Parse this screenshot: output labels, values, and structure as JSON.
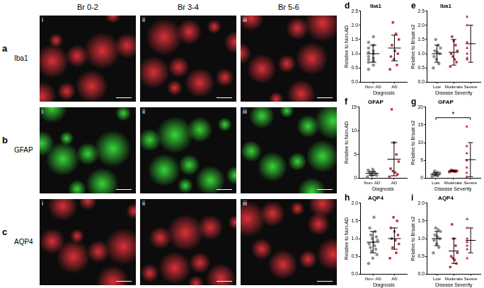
{
  "images": {
    "columns": [
      "Br 0-2",
      "Br 3-4",
      "Br 5-6"
    ],
    "rows": [
      {
        "panel": "a",
        "label": "Iba1",
        "color": "#d8262e",
        "subpanels": [
          "i",
          "ii",
          "iii"
        ]
      },
      {
        "panel": "b",
        "label": "GFAP",
        "color": "#2ed42e",
        "subpanels": [
          "i",
          "ii",
          "iii"
        ]
      },
      {
        "panel": "c",
        "label": "AQP4",
        "color": "#d8262e",
        "subpanels": [
          "i",
          "ii",
          "iii"
        ]
      }
    ]
  },
  "chart_data": [
    {
      "panel": "d",
      "type": "scatter",
      "title": "Iba1",
      "x_label": "Diagnosis",
      "y_label": "Relative to Non-AD",
      "ylim": [
        0,
        2.5
      ],
      "yticks": [
        {
          "value": 0,
          "label": "0.0"
        },
        {
          "value": 0.5,
          "label": "0.5"
        },
        {
          "value": 1,
          "label": "1.0"
        },
        {
          "value": 1.5,
          "label": "1.5"
        },
        {
          "value": 2,
          "label": "2.0"
        },
        {
          "value": 2.5,
          "label": "2.5"
        }
      ],
      "grid": false,
      "groups": [
        {
          "category": "Non- AD",
          "color": "#8c8c8c",
          "marker": "circle",
          "values": [
            0.45,
            0.6,
            0.7,
            0.75,
            0.8,
            0.85,
            0.9,
            1.0,
            1.05,
            1.1,
            1.2,
            1.3,
            1.4,
            1.6
          ],
          "mean": 1.0,
          "error": 0.3
        },
        {
          "category": "AD",
          "color": "#c0283a",
          "marker": "square",
          "values": [
            0.45,
            0.6,
            0.8,
            0.9,
            1.0,
            1.1,
            1.3,
            1.5,
            1.7,
            2.1
          ],
          "mean": 1.2,
          "error": 0.45
        }
      ]
    },
    {
      "panel": "e",
      "type": "scatter",
      "title": "Iba1",
      "x_label": "Disease Severity",
      "y_label": "Relative to Braak ≤2",
      "ylim": [
        0,
        2.5
      ],
      "yticks": [
        {
          "value": 0,
          "label": "0.0"
        },
        {
          "value": 0.5,
          "label": "0.5"
        },
        {
          "value": 1,
          "label": "1.0"
        },
        {
          "value": 1.5,
          "label": "1.5"
        },
        {
          "value": 2,
          "label": "2.0"
        },
        {
          "value": 2.5,
          "label": "2.5"
        }
      ],
      "grid": false,
      "groups": [
        {
          "category": "Low",
          "color": "#8c8c8c",
          "marker": "circle",
          "values": [
            0.5,
            0.65,
            0.8,
            0.9,
            1.0,
            1.05,
            1.1,
            1.2,
            1.3,
            1.5
          ],
          "mean": 1.0,
          "error": 0.3
        },
        {
          "category": "Moderate",
          "color": "#c0283a",
          "marker": "square",
          "values": [
            0.55,
            0.7,
            0.8,
            0.9,
            1.0,
            1.1,
            1.3,
            1.45,
            1.6
          ],
          "mean": 1.05,
          "error": 0.45
        },
        {
          "category": "Severe",
          "color": "#c0283a",
          "marker": "triangle",
          "values": [
            0.8,
            0.85,
            1.0,
            1.2,
            1.4,
            2.0,
            2.3
          ],
          "mean": 1.35,
          "error": 0.65
        }
      ]
    },
    {
      "panel": "f",
      "type": "scatter",
      "title": "GFAP",
      "x_label": "Diagnosis",
      "y_label": "Relative to Non-AD",
      "ylim": [
        0,
        15
      ],
      "yticks": [
        0,
        5,
        10,
        15
      ],
      "grid": false,
      "groups": [
        {
          "category": "Non- AD",
          "color": "#8c8c8c",
          "marker": "circle",
          "values": [
            0.3,
            0.5,
            0.6,
            0.7,
            0.8,
            0.9,
            1.0,
            1.0,
            1.1,
            1.2,
            1.3,
            1.4,
            1.5,
            1.7,
            1.9
          ],
          "mean": 1.0,
          "error": 0.4
        },
        {
          "category": "AD",
          "color": "#c0283a",
          "marker": "square",
          "values": [
            0.3,
            0.8,
            1.2,
            1.5,
            2.0,
            3.5,
            5.0,
            7.5,
            14.5
          ],
          "mean": 4.0,
          "error": 3.5
        }
      ]
    },
    {
      "panel": "g",
      "type": "scatter",
      "title": "GFAP",
      "x_label": "Disease Severity",
      "y_label": "Relative to Braak ≤2",
      "ylim": [
        0,
        20
      ],
      "yticks": [
        0,
        5,
        10,
        15,
        20
      ],
      "grid": false,
      "groups": [
        {
          "category": "Low",
          "color": "#8c8c8c",
          "marker": "circle",
          "values": [
            0.5,
            0.7,
            0.9,
            1.0,
            1.1,
            1.2,
            1.3,
            1.5,
            1.7,
            2.0
          ],
          "mean": 1.1,
          "error": 0.45
        },
        {
          "category": "Moderate",
          "color": "#c0283a",
          "marker": "square",
          "values": [
            1.7,
            1.8,
            1.9,
            2.0,
            2.0,
            2.1,
            2.1,
            2.2,
            2.3
          ],
          "mean": 2.0,
          "error": 0.2
        },
        {
          "category": "Severe",
          "color": "#c0283a",
          "marker": "triangle",
          "values": [
            0.4,
            1.5,
            3.0,
            5.0,
            7.0,
            9.0,
            14.5
          ],
          "mean": 5.2,
          "error": 4.8
        }
      ],
      "annotations": [
        {
          "text": "*",
          "from": "Low",
          "to": "Severe",
          "y": 17
        }
      ]
    },
    {
      "panel": "h",
      "type": "scatter",
      "title": "AQP4",
      "x_label": "Diagnosis",
      "y_label": "Relative to Non-AD",
      "ylim": [
        0,
        2
      ],
      "yticks": [
        {
          "value": 0,
          "label": "0.0"
        },
        {
          "value": 0.5,
          "label": "0.5"
        },
        {
          "value": 1,
          "label": "1.0"
        },
        {
          "value": 1.5,
          "label": "1.5"
        },
        {
          "value": 2,
          "label": "2.0"
        }
      ],
      "grid": false,
      "groups": [
        {
          "category": "Non- AD",
          "color": "#8c8c8c",
          "marker": "circle",
          "values": [
            0.3,
            0.45,
            0.55,
            0.65,
            0.7,
            0.75,
            0.8,
            0.85,
            0.9,
            0.95,
            1.0,
            1.05,
            1.1,
            1.2,
            1.3,
            1.6
          ],
          "mean": 0.9,
          "error": 0.3
        },
        {
          "category": "AD",
          "color": "#c0283a",
          "marker": "square",
          "values": [
            0.45,
            0.6,
            0.75,
            0.85,
            0.95,
            1.0,
            1.1,
            1.2,
            1.3,
            1.5,
            1.6
          ],
          "mean": 1.0,
          "error": 0.3
        }
      ]
    },
    {
      "panel": "i",
      "type": "scatter",
      "title": "AQP4",
      "x_label": "Disease Severity",
      "y_label": "Relative to Braak ≤2",
      "ylim": [
        0,
        2
      ],
      "yticks": [
        {
          "value": 0,
          "label": "0.0"
        },
        {
          "value": 0.5,
          "label": "0.5"
        },
        {
          "value": 1,
          "label": "1.0"
        },
        {
          "value": 1.5,
          "label": "1.5"
        },
        {
          "value": 2,
          "label": "2.0"
        }
      ],
      "grid": false,
      "groups": [
        {
          "category": "Low",
          "color": "#8c8c8c",
          "marker": "circle",
          "values": [
            0.6,
            0.75,
            0.85,
            0.95,
            1.0,
            1.05,
            1.1,
            1.2,
            1.25,
            1.3
          ],
          "mean": 1.0,
          "error": 0.2
        },
        {
          "category": "Moderate",
          "color": "#c0283a",
          "marker": "square",
          "values": [
            0.2,
            0.3,
            0.4,
            0.45,
            0.5,
            0.6,
            0.8,
            1.0,
            1.4
          ],
          "mean": 0.65,
          "error": 0.35
        },
        {
          "category": "Severe",
          "color": "#c0283a",
          "marker": "triangle",
          "values": [
            0.45,
            0.7,
            0.8,
            0.9,
            1.0,
            1.3,
            1.55
          ],
          "mean": 0.95,
          "error": 0.35
        }
      ]
    }
  ]
}
